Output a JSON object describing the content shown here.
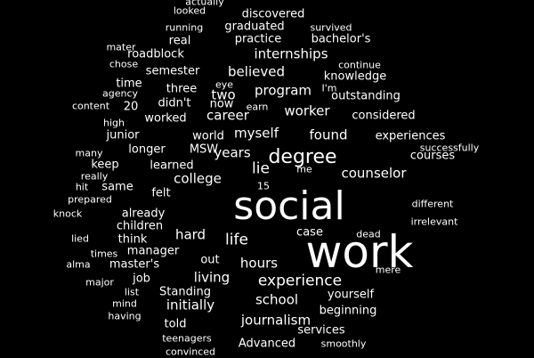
{
  "colors": {
    "background": "#000000",
    "text": "#ffffff"
  },
  "words": [
    "actually",
    "looked",
    "discovered",
    "running",
    "graduated",
    "survived",
    "real",
    "practice",
    "bachelor's",
    "mater",
    "roadblock",
    "internships",
    "chose",
    "continue",
    "semester",
    "believed",
    "knowledge",
    "time",
    "eye",
    "I'm",
    "agency",
    "three",
    "two",
    "program",
    "outstanding",
    "didn't",
    "now",
    "earn",
    "content",
    "20",
    "high",
    "worked",
    "career",
    "worker",
    "considered",
    "junior",
    "world",
    "myself",
    "found",
    "experiences",
    "many",
    "longer",
    "MSW",
    "successfully",
    "keep",
    "years",
    "degree",
    "courses",
    "learned",
    "lie",
    "me",
    "really",
    "college",
    "counselor",
    "hit",
    "same",
    "15",
    "prepared",
    "felt",
    "different",
    "social",
    "knock",
    "already",
    "irrelevant",
    "children",
    "lied",
    "think",
    "case",
    "dead",
    "hard",
    "life",
    "work",
    "times",
    "manager",
    "alma",
    "master's",
    "out",
    "hours",
    "mere",
    "major",
    "job",
    "living",
    "experience",
    "list",
    "Standing",
    "yourself",
    "mind",
    "initially",
    "school",
    "having",
    "beginning",
    "told",
    "journalism",
    "services",
    "teenagers",
    "Advanced",
    "smoothly",
    "convinced"
  ]
}
